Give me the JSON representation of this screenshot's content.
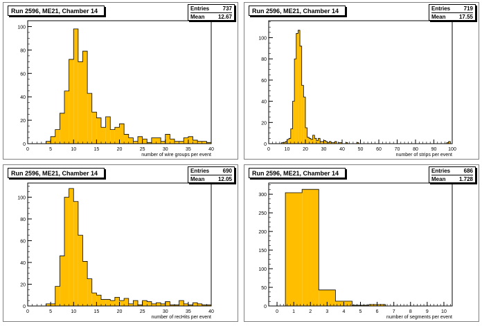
{
  "chart_data": [
    {
      "type": "bar",
      "title": "Run 2596, ME21, Chamber 14",
      "stats": {
        "entries_label": "Entries",
        "entries": "737",
        "mean_label": "Mean",
        "mean": "12.67"
      },
      "xlabel": "number of wire groups per event",
      "xlim": [
        0,
        40
      ],
      "ylim": [
        0,
        105
      ],
      "xticks": [
        0,
        5,
        10,
        15,
        20,
        25,
        30,
        35,
        40
      ],
      "yticks": [
        0,
        20,
        40,
        60,
        80,
        100
      ],
      "bin_width": 1,
      "bins_start": 0,
      "values": [
        0,
        0,
        0,
        0,
        2,
        6,
        12,
        26,
        45,
        72,
        98,
        70,
        79,
        43,
        27,
        22,
        14,
        23,
        12,
        14,
        17,
        8,
        5,
        2,
        6,
        4,
        1,
        5,
        5,
        2,
        8,
        4,
        2,
        2,
        5,
        6,
        3,
        2,
        2,
        1
      ]
    },
    {
      "type": "bar",
      "title": "Run 2596, ME21, Chamber 14",
      "stats": {
        "entries_label": "Entries",
        "entries": "719",
        "mean_label": "Mean",
        "mean": "17.55"
      },
      "xlabel": "number of strips per event",
      "xlim": [
        0,
        100
      ],
      "ylim": [
        0,
        116
      ],
      "xticks": [
        0,
        10,
        20,
        30,
        40,
        50,
        60,
        70,
        80,
        90,
        100
      ],
      "yticks": [
        0,
        20,
        40,
        60,
        80,
        100
      ],
      "bin_width": 1,
      "bins_start": 0,
      "values": [
        0,
        0,
        0,
        0,
        0,
        0,
        0,
        1,
        1,
        2,
        4,
        5,
        14,
        40,
        80,
        104,
        107,
        92,
        55,
        44,
        15,
        6,
        5,
        4,
        8,
        5,
        3,
        5,
        2,
        2,
        3,
        2,
        1,
        2,
        1,
        1,
        2,
        0,
        1,
        1,
        0,
        0,
        1,
        0,
        0,
        0,
        0,
        0,
        1,
        0,
        0,
        0,
        0,
        0,
        0,
        0,
        0,
        0,
        0,
        0,
        0,
        0,
        0,
        0,
        0,
        0,
        0,
        0,
        0,
        0,
        0,
        0,
        0,
        0,
        0,
        0,
        0,
        0,
        0,
        0,
        0,
        0,
        0,
        0,
        0,
        0,
        0,
        0,
        0,
        0,
        0,
        0,
        0,
        0,
        0,
        0,
        0,
        1,
        2,
        0
      ]
    },
    {
      "type": "bar",
      "title": "Run 2596, ME21, Chamber 14",
      "stats": {
        "entries_label": "Entries",
        "entries": "690",
        "mean_label": "Mean",
        "mean": "12.05"
      },
      "xlabel": "number of recHits per event",
      "xlim": [
        0,
        40
      ],
      "ylim": [
        0,
        113
      ],
      "xticks": [
        0,
        5,
        10,
        15,
        20,
        25,
        30,
        35,
        40
      ],
      "yticks": [
        0,
        20,
        40,
        60,
        80,
        100
      ],
      "bin_width": 1,
      "bins_start": 0,
      "values": [
        0,
        0,
        0,
        0,
        2,
        2,
        18,
        46,
        100,
        108,
        96,
        65,
        41,
        25,
        12,
        10,
        6,
        6,
        5,
        8,
        5,
        7,
        2,
        5,
        1,
        5,
        4,
        2,
        3,
        2,
        4,
        1,
        1,
        5,
        2,
        1,
        3,
        2,
        1,
        1
      ]
    },
    {
      "type": "bar",
      "title": "Run 2596, ME21, Chamber 14",
      "stats": {
        "entries_label": "Entries",
        "entries": "686",
        "mean_label": "Mean",
        "mean": "1.728"
      },
      "xlabel": "number of segments per event",
      "xlim": [
        -0.5,
        10.5
      ],
      "ylim": [
        0,
        330
      ],
      "xticks": [
        0,
        1,
        2,
        3,
        4,
        5,
        6,
        7,
        8,
        9,
        10
      ],
      "yticks": [
        0,
        50,
        100,
        150,
        200,
        250,
        300
      ],
      "bin_width": 1,
      "bins_start": -0.5,
      "values": [
        0,
        304,
        313,
        43,
        13,
        2,
        4,
        0,
        0,
        0,
        0
      ]
    }
  ],
  "colors": {
    "fill": "#ffbf00",
    "line": "#000000"
  }
}
